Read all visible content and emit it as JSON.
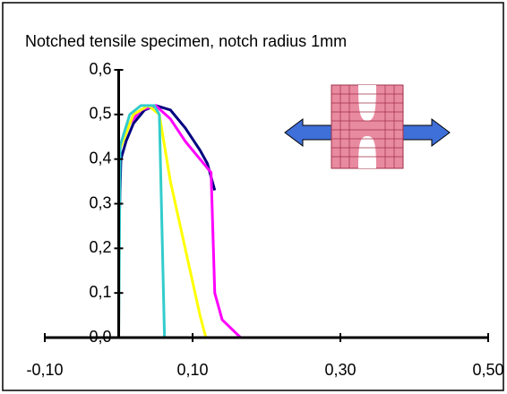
{
  "chart_data": {
    "type": "line",
    "title": "Notched tensile specimen, notch radius 1mm",
    "xlim": [
      -0.1,
      0.5
    ],
    "xticks": [
      {
        "value": -0.1,
        "label": "-0,10"
      },
      {
        "value": 0.1,
        "label": "0,10"
      },
      {
        "value": 0.3,
        "label": "0,30"
      },
      {
        "value": 0.5,
        "label": "0,50"
      }
    ],
    "ylim": [
      0,
      0.6
    ],
    "yticks": [
      {
        "value": 0,
        "label": "0,0"
      },
      {
        "value": 0.1,
        "label": "0,1"
      },
      {
        "value": 0.2,
        "label": "0,2"
      },
      {
        "value": 0.3,
        "label": "0,3"
      },
      {
        "value": 0.4,
        "label": "0,4"
      },
      {
        "value": 0.5,
        "label": "0,5"
      },
      {
        "value": 0.6,
        "label": "0,6"
      }
    ],
    "series": [
      {
        "color": "#000080",
        "x": [
          0.0,
          0.003,
          0.01,
          0.02,
          0.035,
          0.05,
          0.07,
          0.09,
          0.11,
          0.12,
          0.13
        ],
        "values": [
          0.21,
          0.4,
          0.44,
          0.48,
          0.51,
          0.52,
          0.51,
          0.47,
          0.42,
          0.39,
          0.33
        ]
      },
      {
        "color": "#ff00ff",
        "x": [
          0.0,
          0.001,
          0.01,
          0.03,
          0.05,
          0.07,
          0.09,
          0.11,
          0.125,
          0.13,
          0.14,
          0.165,
          0.394
        ],
        "values": [
          0.0,
          0.42,
          0.47,
          0.51,
          0.52,
          0.49,
          0.44,
          0.4,
          0.37,
          0.1,
          0.04,
          0.0,
          0.0
        ]
      },
      {
        "color": "#ffff00",
        "x": [
          0.0,
          0.001,
          0.02,
          0.04,
          0.055,
          0.07,
          0.09,
          0.11,
          0.118,
          0.394
        ],
        "values": [
          0.0,
          0.42,
          0.5,
          0.52,
          0.5,
          0.35,
          0.2,
          0.05,
          0.0,
          0.0
        ]
      },
      {
        "color": "#33cccc",
        "x": [
          0.0,
          0.002,
          0.015,
          0.03,
          0.048,
          0.055,
          0.062,
          0.394
        ],
        "values": [
          0.0,
          0.43,
          0.5,
          0.52,
          0.52,
          0.5,
          0.0,
          0.0
        ]
      }
    ]
  }
}
